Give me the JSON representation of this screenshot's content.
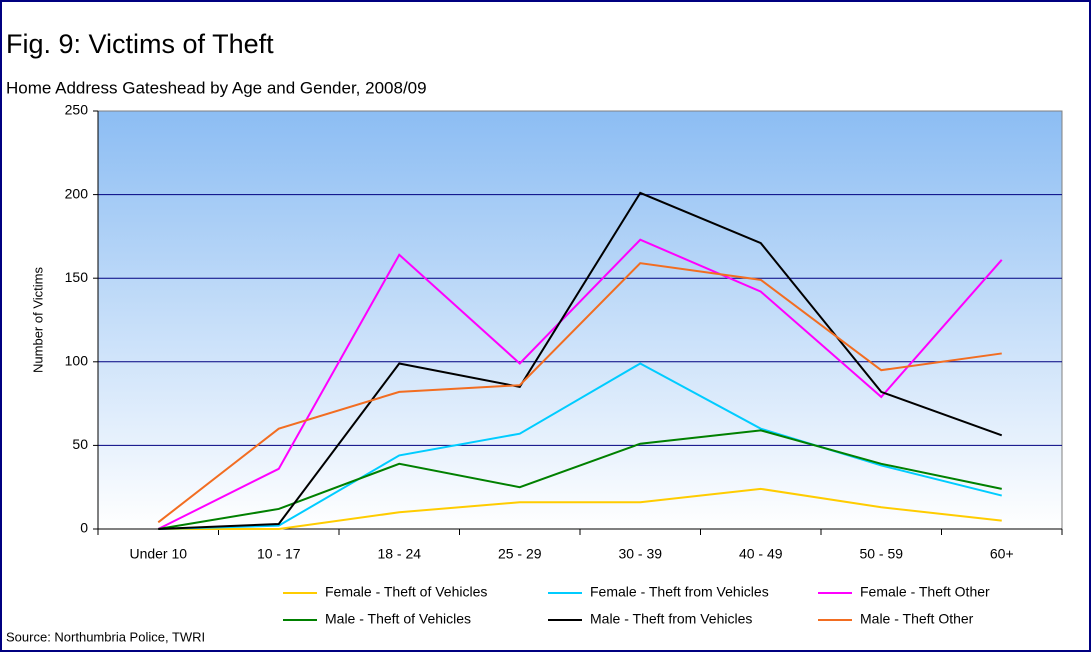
{
  "chart_data": {
    "type": "line",
    "title": "Fig. 9: Victims of Theft",
    "subtitle": "Home Address Gateshead by Age and Gender, 2008/09",
    "y_label": "Number of Victims",
    "source": "Source: Northumbria Police, TWRI",
    "categories": [
      "Under 10",
      "10 - 17",
      "18 - 24",
      "25 - 29",
      "30 - 39",
      "40 - 49",
      "50 - 59",
      "60+"
    ],
    "series": [
      {
        "name": "Female - Theft of Vehicles",
        "color": "#ffcc00",
        "values": [
          0,
          0,
          10,
          16,
          16,
          24,
          13,
          5
        ]
      },
      {
        "name": "Female - Theft from Vehicles",
        "color": "#00ccff",
        "values": [
          0,
          2,
          44,
          57,
          99,
          60,
          38,
          20
        ]
      },
      {
        "name": "Female - Theft Other",
        "color": "#ff00ff",
        "values": [
          0,
          36,
          164,
          99,
          173,
          142,
          79,
          161
        ]
      },
      {
        "name": "Male - Theft of Vehicles",
        "color": "#008000",
        "values": [
          0,
          12,
          39,
          25,
          51,
          59,
          39,
          24
        ]
      },
      {
        "name": "Male - Theft from Vehicles",
        "color": "#000000",
        "values": [
          0,
          3,
          99,
          85,
          201,
          171,
          82,
          56
        ]
      },
      {
        "name": "Male - Theft Other",
        "color": "#f26d21",
        "values": [
          4,
          60,
          82,
          86,
          159,
          149,
          95,
          105
        ]
      }
    ],
    "ylim": [
      0,
      250
    ],
    "yticks": [
      0,
      50,
      100,
      150,
      200,
      250
    ],
    "grid": true
  }
}
